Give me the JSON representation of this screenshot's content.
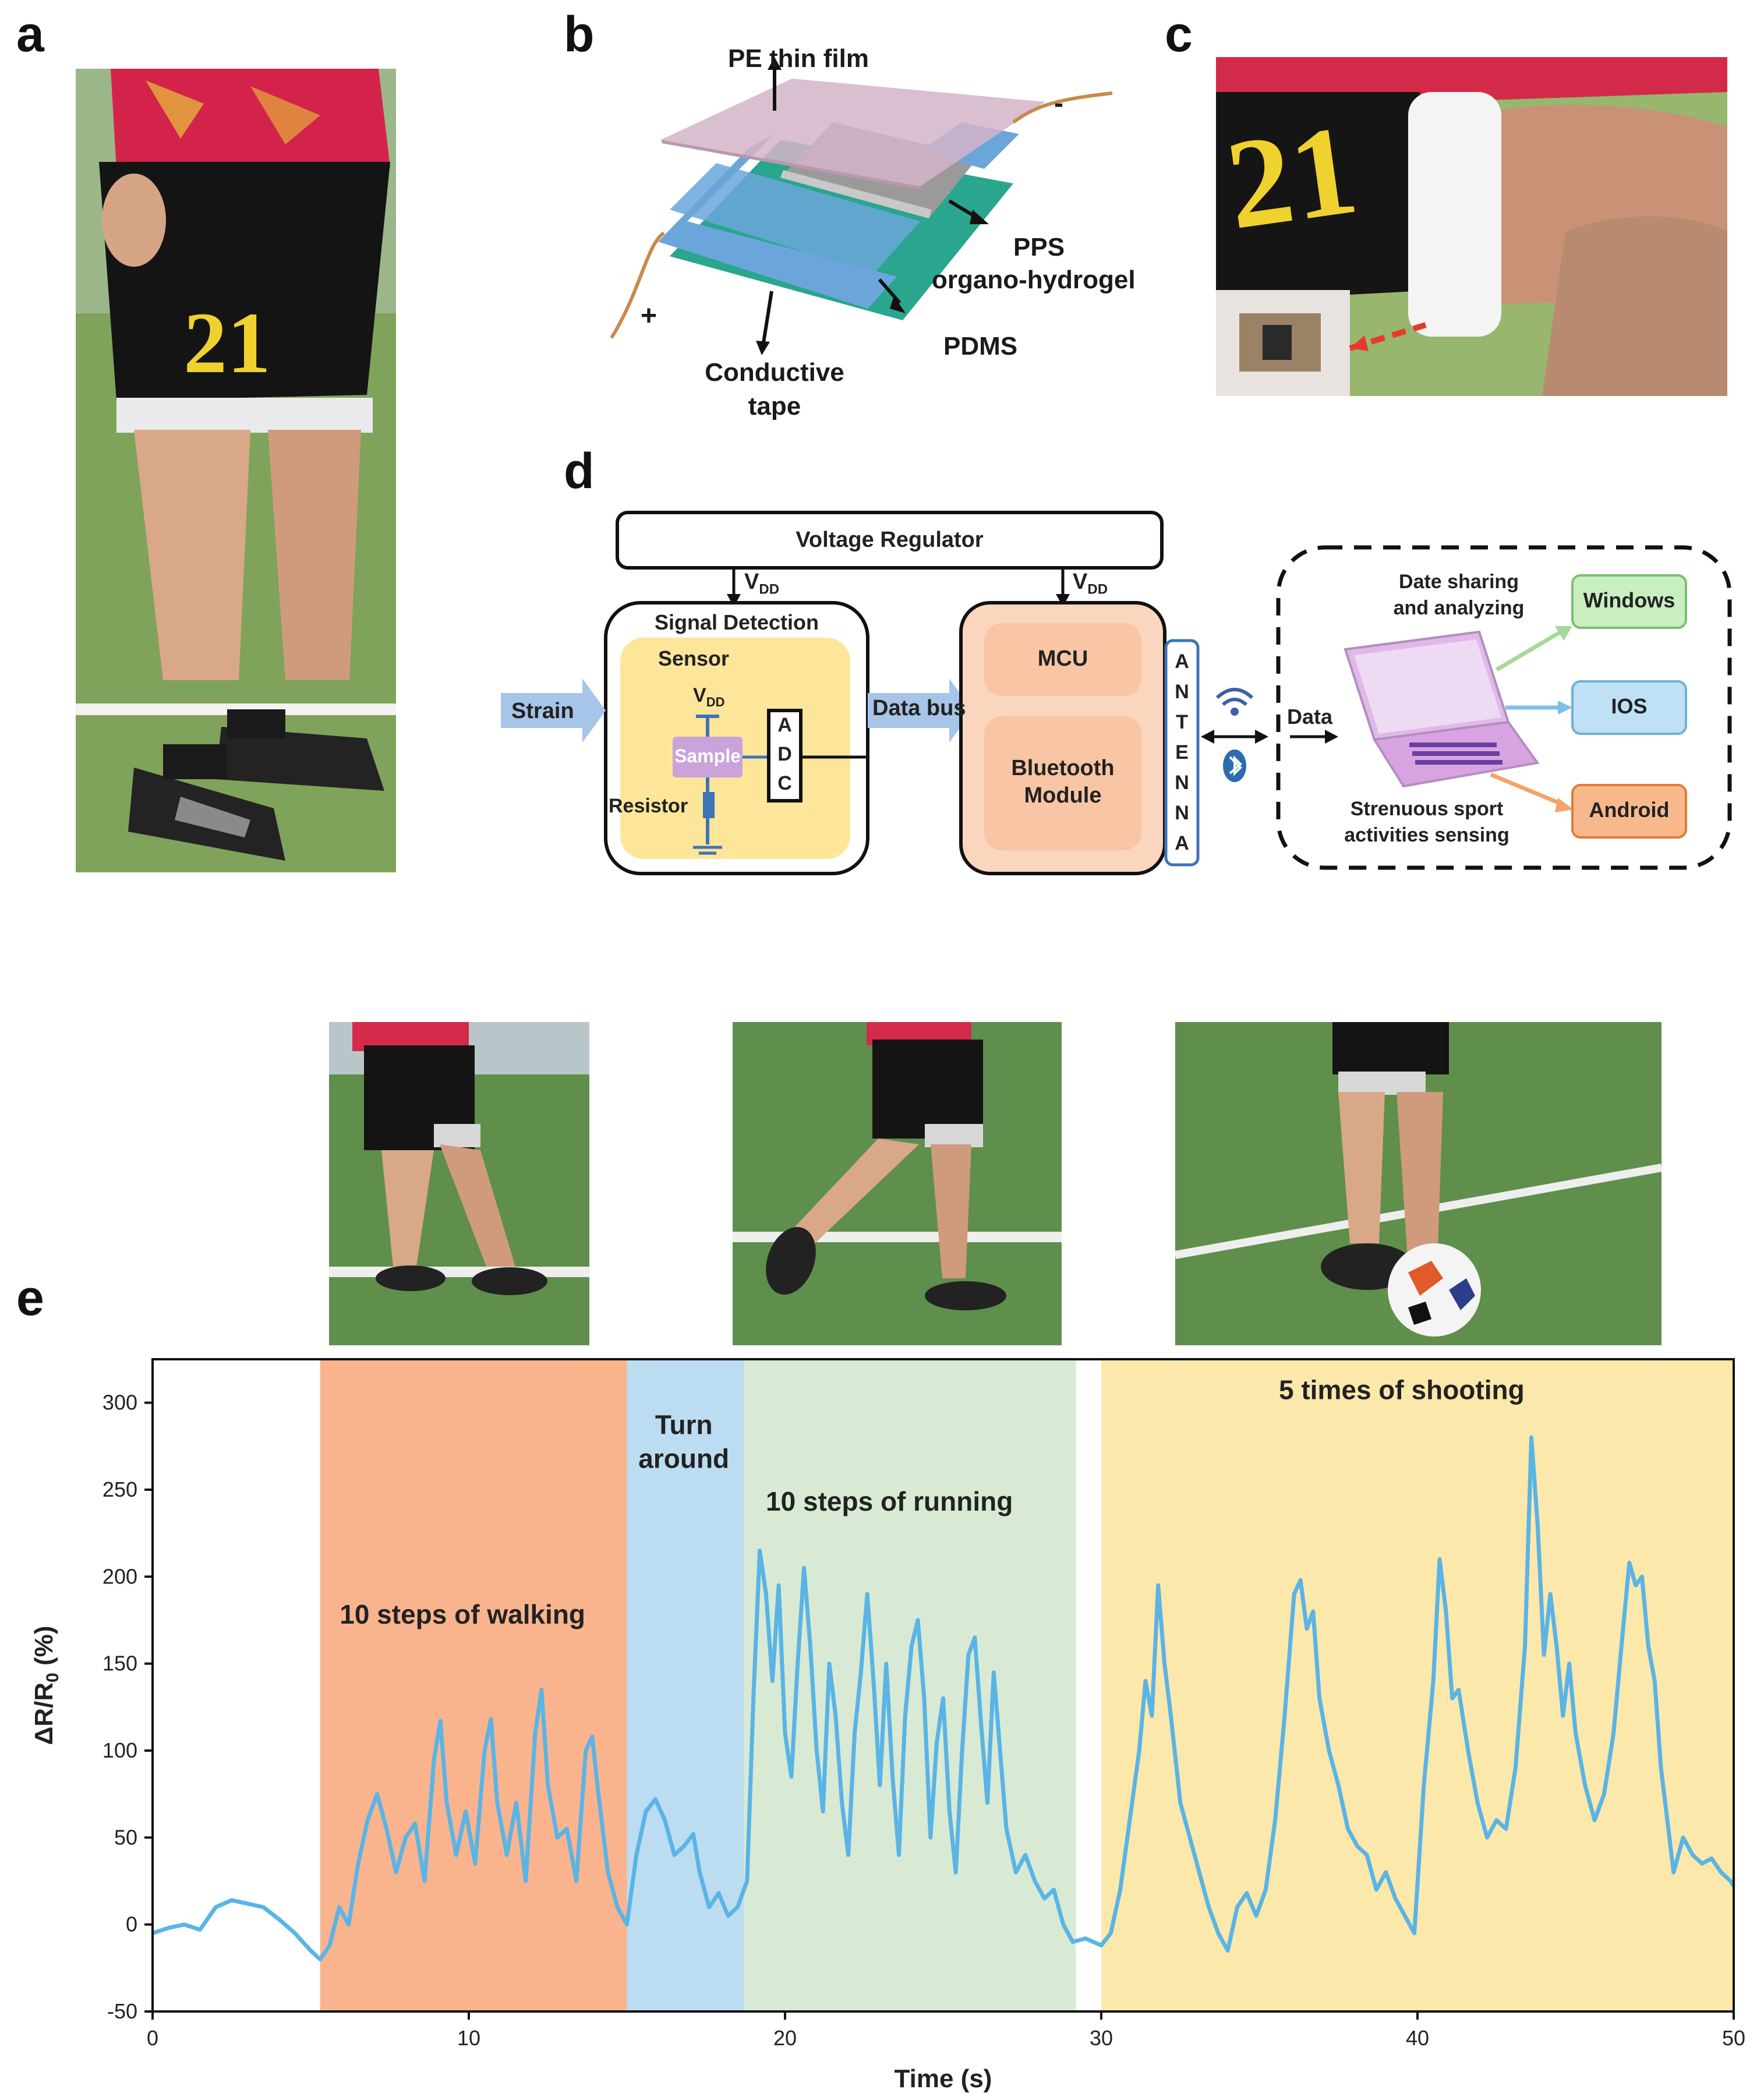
{
  "panels": {
    "a": "a",
    "b": "b",
    "c": "c",
    "d": "d",
    "e": "e"
  },
  "panel_b": {
    "pe_film": "PE thin film",
    "pps": "PPS",
    "organo": "organo-hydrogel",
    "pdms": "PDMS",
    "conductive": "Conductive",
    "tape": "tape",
    "plus": "+",
    "minus": "-"
  },
  "jersey_number": "21",
  "panel_d": {
    "voltage_regulator": "Voltage Regulator",
    "vdd": "V",
    "vdd_sub": "DD",
    "signal_detection": "Signal Detection",
    "sensor": "Sensor",
    "sample": "Sample",
    "resistor": "Resistor",
    "adc": [
      "A",
      "D",
      "C"
    ],
    "strain": "Strain",
    "data_bus": "Data bus",
    "mcu": "MCU",
    "bluetooth_line1": "Bluetooth",
    "bluetooth_line2": "Module",
    "antenna": [
      "A",
      "N",
      "T",
      "E",
      "N",
      "N",
      "A"
    ],
    "data": "Data",
    "date_sharing_line1": "Date sharing",
    "date_sharing_line2": "and analyzing",
    "strenuous_line1": "Strenuous sport",
    "strenuous_line2": "activities sensing",
    "windows": "Windows",
    "ios": "IOS",
    "android": "Android",
    "colors": {
      "windows": "#c9efc0",
      "ios": "#bfe0f5",
      "android": "#f7b98c",
      "yellow": "#fde59a",
      "peach": "#fbd6bf",
      "peach_inner": "#f8c6a4",
      "sample": "#c9a3da",
      "laptop": "#e0b9e8"
    }
  },
  "chart_data": {
    "type": "line",
    "xlabel": "Time (s)",
    "ylabel": "ΔR/R",
    "ylabel_sub": "0",
    "ylabel_suffix": " (%)",
    "xlim": [
      0,
      50
    ],
    "ylim": [
      -50,
      325
    ],
    "xticks": [
      0,
      10,
      20,
      30,
      40,
      50
    ],
    "yticks": [
      -50,
      0,
      50,
      100,
      150,
      200,
      250,
      300
    ],
    "line_color": "#5ab4e5",
    "regions": [
      {
        "start": 5.3,
        "end": 15.0,
        "color": "#f9b48e",
        "label_lines": [
          "10 steps of walking"
        ],
        "label_x": 9.8,
        "label_y": 173
      },
      {
        "start": 15.0,
        "end": 18.7,
        "color": "#bcdcf2",
        "label_lines": [
          "Turn",
          "around"
        ],
        "label_x": 16.8,
        "label_y": 282
      },
      {
        "start": 18.7,
        "end": 29.2,
        "color": "#d8ead4",
        "label_lines": [
          "10 steps of running"
        ],
        "label_x": 23.3,
        "label_y": 238
      },
      {
        "start": 30.0,
        "end": 50.0,
        "color": "#fde8ab",
        "label_lines": [
          "5 times of shooting"
        ],
        "label_x": 39.5,
        "label_y": 302
      }
    ],
    "series": [
      {
        "name": "ΔR/R0",
        "points": [
          [
            0,
            -5
          ],
          [
            0.5,
            -2
          ],
          [
            1,
            0
          ],
          [
            1.5,
            -3
          ],
          [
            2,
            10
          ],
          [
            2.5,
            14
          ],
          [
            3,
            12
          ],
          [
            3.5,
            10
          ],
          [
            4,
            3
          ],
          [
            4.5,
            -5
          ],
          [
            5,
            -15
          ],
          [
            5.3,
            -20
          ],
          [
            5.6,
            -12
          ],
          [
            5.9,
            10
          ],
          [
            6.2,
            0
          ],
          [
            6.5,
            35
          ],
          [
            6.8,
            60
          ],
          [
            7.1,
            75
          ],
          [
            7.4,
            55
          ],
          [
            7.7,
            30
          ],
          [
            8.0,
            50
          ],
          [
            8.3,
            58
          ],
          [
            8.6,
            25
          ],
          [
            8.9,
            95
          ],
          [
            9.1,
            117
          ],
          [
            9.3,
            70
          ],
          [
            9.6,
            40
          ],
          [
            9.9,
            65
          ],
          [
            10.2,
            35
          ],
          [
            10.5,
            100
          ],
          [
            10.7,
            118
          ],
          [
            10.9,
            70
          ],
          [
            11.2,
            40
          ],
          [
            11.5,
            70
          ],
          [
            11.8,
            25
          ],
          [
            12.1,
            110
          ],
          [
            12.3,
            135
          ],
          [
            12.5,
            80
          ],
          [
            12.8,
            50
          ],
          [
            13.1,
            55
          ],
          [
            13.4,
            25
          ],
          [
            13.7,
            100
          ],
          [
            13.9,
            108
          ],
          [
            14.1,
            75
          ],
          [
            14.4,
            30
          ],
          [
            14.7,
            10
          ],
          [
            15.0,
            0
          ],
          [
            15.3,
            40
          ],
          [
            15.6,
            65
          ],
          [
            15.9,
            72
          ],
          [
            16.2,
            60
          ],
          [
            16.5,
            40
          ],
          [
            16.8,
            45
          ],
          [
            17.1,
            52
          ],
          [
            17.3,
            30
          ],
          [
            17.6,
            10
          ],
          [
            17.9,
            18
          ],
          [
            18.2,
            5
          ],
          [
            18.5,
            10
          ],
          [
            18.8,
            25
          ],
          [
            19.0,
            130
          ],
          [
            19.2,
            215
          ],
          [
            19.4,
            190
          ],
          [
            19.6,
            140
          ],
          [
            19.8,
            195
          ],
          [
            20.0,
            110
          ],
          [
            20.2,
            85
          ],
          [
            20.4,
            150
          ],
          [
            20.6,
            205
          ],
          [
            20.8,
            160
          ],
          [
            21.0,
            100
          ],
          [
            21.2,
            65
          ],
          [
            21.4,
            150
          ],
          [
            21.6,
            120
          ],
          [
            21.8,
            70
          ],
          [
            22.0,
            40
          ],
          [
            22.2,
            110
          ],
          [
            22.4,
            145
          ],
          [
            22.6,
            190
          ],
          [
            22.8,
            140
          ],
          [
            23.0,
            80
          ],
          [
            23.2,
            150
          ],
          [
            23.4,
            85
          ],
          [
            23.6,
            40
          ],
          [
            23.8,
            120
          ],
          [
            24.0,
            160
          ],
          [
            24.2,
            175
          ],
          [
            24.4,
            130
          ],
          [
            24.6,
            50
          ],
          [
            24.8,
            105
          ],
          [
            25.0,
            130
          ],
          [
            25.2,
            65
          ],
          [
            25.4,
            30
          ],
          [
            25.6,
            100
          ],
          [
            25.8,
            155
          ],
          [
            26.0,
            165
          ],
          [
            26.2,
            115
          ],
          [
            26.4,
            70
          ],
          [
            26.6,
            145
          ],
          [
            26.8,
            100
          ],
          [
            27.0,
            55
          ],
          [
            27.3,
            30
          ],
          [
            27.6,
            40
          ],
          [
            27.9,
            25
          ],
          [
            28.2,
            15
          ],
          [
            28.5,
            20
          ],
          [
            28.8,
            0
          ],
          [
            29.1,
            -10
          ],
          [
            29.5,
            -8
          ],
          [
            30.0,
            -12
          ],
          [
            30.3,
            -5
          ],
          [
            30.6,
            20
          ],
          [
            30.9,
            60
          ],
          [
            31.2,
            100
          ],
          [
            31.4,
            140
          ],
          [
            31.6,
            120
          ],
          [
            31.8,
            195
          ],
          [
            32.0,
            150
          ],
          [
            32.2,
            120
          ],
          [
            32.5,
            70
          ],
          [
            32.8,
            50
          ],
          [
            33.1,
            30
          ],
          [
            33.4,
            10
          ],
          [
            33.7,
            -5
          ],
          [
            34.0,
            -15
          ],
          [
            34.3,
            10
          ],
          [
            34.6,
            18
          ],
          [
            34.9,
            5
          ],
          [
            35.2,
            20
          ],
          [
            35.5,
            60
          ],
          [
            35.8,
            120
          ],
          [
            36.1,
            190
          ],
          [
            36.3,
            198
          ],
          [
            36.5,
            170
          ],
          [
            36.7,
            180
          ],
          [
            36.9,
            130
          ],
          [
            37.2,
            100
          ],
          [
            37.5,
            80
          ],
          [
            37.8,
            55
          ],
          [
            38.1,
            45
          ],
          [
            38.4,
            40
          ],
          [
            38.7,
            20
          ],
          [
            39.0,
            30
          ],
          [
            39.3,
            15
          ],
          [
            39.6,
            5
          ],
          [
            39.9,
            -5
          ],
          [
            40.2,
            80
          ],
          [
            40.5,
            140
          ],
          [
            40.7,
            210
          ],
          [
            40.9,
            180
          ],
          [
            41.1,
            130
          ],
          [
            41.3,
            135
          ],
          [
            41.6,
            100
          ],
          [
            41.9,
            70
          ],
          [
            42.2,
            50
          ],
          [
            42.5,
            60
          ],
          [
            42.8,
            55
          ],
          [
            43.1,
            90
          ],
          [
            43.4,
            160
          ],
          [
            43.6,
            280
          ],
          [
            43.8,
            230
          ],
          [
            44.0,
            155
          ],
          [
            44.2,
            190
          ],
          [
            44.4,
            160
          ],
          [
            44.6,
            120
          ],
          [
            44.8,
            150
          ],
          [
            45.0,
            110
          ],
          [
            45.3,
            80
          ],
          [
            45.6,
            60
          ],
          [
            45.9,
            75
          ],
          [
            46.2,
            110
          ],
          [
            46.5,
            170
          ],
          [
            46.7,
            208
          ],
          [
            46.9,
            195
          ],
          [
            47.1,
            200
          ],
          [
            47.3,
            160
          ],
          [
            47.5,
            140
          ],
          [
            47.7,
            90
          ],
          [
            47.9,
            60
          ],
          [
            48.1,
            30
          ],
          [
            48.4,
            50
          ],
          [
            48.7,
            40
          ],
          [
            49.0,
            35
          ],
          [
            49.3,
            38
          ],
          [
            49.6,
            30
          ],
          [
            49.9,
            25
          ],
          [
            50,
            22
          ]
        ]
      }
    ]
  }
}
